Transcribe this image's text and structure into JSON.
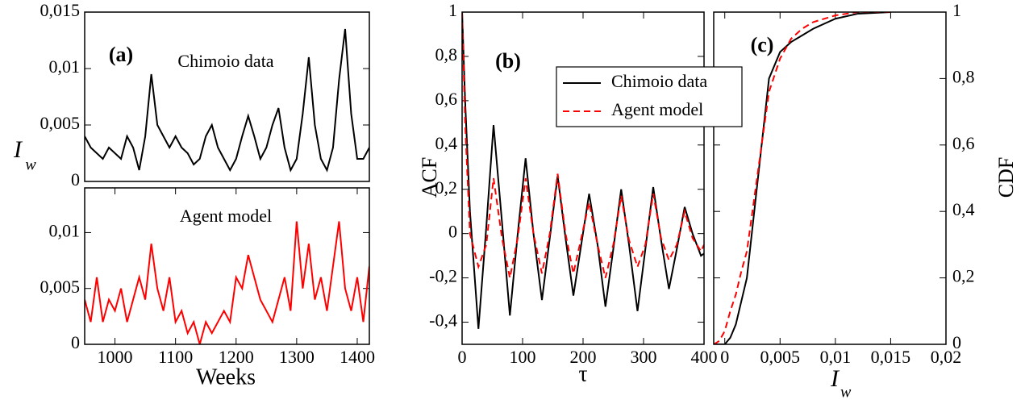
{
  "chart_data": [
    {
      "type": "line",
      "panel_label": "(a)",
      "annotation": "Chimoio data",
      "ylabel": "I",
      "ylabel_sub": "w",
      "x": [
        950,
        960,
        970,
        980,
        990,
        1000,
        1010,
        1020,
        1030,
        1040,
        1050,
        1060,
        1070,
        1080,
        1090,
        1100,
        1110,
        1120,
        1130,
        1140,
        1150,
        1160,
        1170,
        1180,
        1190,
        1200,
        1210,
        1220,
        1230,
        1240,
        1250,
        1260,
        1270,
        1280,
        1290,
        1300,
        1310,
        1320,
        1330,
        1340,
        1350,
        1360,
        1370,
        1380,
        1390,
        1400,
        1410,
        1420
      ],
      "series": [
        {
          "color": "#000000",
          "values": [
            0.004,
            0.003,
            0.0025,
            0.002,
            0.003,
            0.0025,
            0.002,
            0.004,
            0.003,
            0.001,
            0.004,
            0.0095,
            0.005,
            0.004,
            0.003,
            0.004,
            0.003,
            0.0025,
            0.0015,
            0.002,
            0.004,
            0.005,
            0.003,
            0.002,
            0.001,
            0.002,
            0.004,
            0.0058,
            0.004,
            0.002,
            0.003,
            0.005,
            0.0065,
            0.003,
            0.001,
            0.002,
            0.006,
            0.011,
            0.005,
            0.002,
            0.001,
            0.003,
            0.009,
            0.0135,
            0.006,
            0.002,
            0.002,
            0.003
          ]
        }
      ],
      "xlim": [
        950,
        1420
      ],
      "ylim": [
        0,
        0.015
      ],
      "yticks": [
        0,
        {
          "value": 0.005,
          "label": "0,005"
        },
        {
          "value": 0.01,
          "label": "0,01"
        },
        {
          "value": 0.015,
          "label": "0,015"
        }
      ]
    },
    {
      "type": "line",
      "annotation": "Agent model",
      "xlabel": "Weeks",
      "x": [
        950,
        960,
        970,
        980,
        990,
        1000,
        1010,
        1020,
        1030,
        1040,
        1050,
        1060,
        1070,
        1080,
        1090,
        1100,
        1110,
        1120,
        1130,
        1140,
        1150,
        1160,
        1170,
        1180,
        1190,
        1200,
        1210,
        1220,
        1230,
        1240,
        1250,
        1260,
        1270,
        1280,
        1290,
        1300,
        1310,
        1320,
        1330,
        1340,
        1350,
        1360,
        1370,
        1380,
        1390,
        1400,
        1410,
        1420
      ],
      "series": [
        {
          "color": "#ff0000",
          "values": [
            0.004,
            0.002,
            0.006,
            0.002,
            0.004,
            0.003,
            0.005,
            0.002,
            0.004,
            0.006,
            0.004,
            0.009,
            0.005,
            0.003,
            0.006,
            0.002,
            0.003,
            0.001,
            0.002,
            0,
            0.002,
            0.001,
            0.002,
            0.003,
            0.002,
            0.006,
            0.005,
            0.008,
            0.006,
            0.004,
            0.003,
            0.002,
            0.004,
            0.006,
            0.003,
            0.011,
            0.005,
            0.009,
            0.004,
            0.006,
            0.003,
            0.007,
            0.011,
            0.005,
            0.003,
            0.006,
            0.002,
            0.007
          ]
        }
      ],
      "xlim": [
        950,
        1420
      ],
      "ylim": [
        0,
        0.014
      ],
      "xticks": [
        1000,
        1100,
        1200,
        1300,
        1400
      ],
      "yticks": [
        0,
        {
          "value": 0.005,
          "label": "0,005"
        },
        {
          "value": 0.01,
          "label": "0,01"
        }
      ]
    },
    {
      "type": "line",
      "panel_label": "(b)",
      "ylabel": "ACF",
      "xlabel": "τ",
      "x": [
        0,
        5,
        13,
        27,
        40,
        52,
        66,
        79,
        92,
        105,
        118,
        132,
        145,
        158,
        171,
        184,
        197,
        210,
        224,
        237,
        250,
        263,
        276,
        290,
        303,
        316,
        329,
        342,
        355,
        368,
        381,
        395,
        400
      ],
      "series": [
        {
          "name": "Chimoio data",
          "color": "#000000",
          "dash": false,
          "values": [
            1,
            0.6,
            0.1,
            -0.43,
            0.03,
            0.49,
            0.05,
            -0.37,
            0,
            0.34,
            0,
            -0.3,
            -0.02,
            0.26,
            -0.02,
            -0.28,
            -0.05,
            0.18,
            -0.05,
            -0.33,
            -0.07,
            0.2,
            -0.05,
            -0.35,
            -0.07,
            0.21,
            -0.03,
            -0.25,
            -0.07,
            0.12,
            0,
            -0.1,
            -0.09
          ]
        },
        {
          "name": "Agent model",
          "color": "#ff0000",
          "dash": true,
          "values": [
            1,
            0.5,
            0,
            -0.15,
            -0.05,
            0.25,
            -0.02,
            -0.2,
            -0.02,
            0.25,
            0,
            -0.18,
            0,
            0.27,
            0,
            -0.18,
            -0.02,
            0.14,
            -0.05,
            -0.2,
            -0.05,
            0.17,
            -0.03,
            -0.15,
            -0.05,
            0.18,
            -0.02,
            -0.12,
            -0.05,
            0.1,
            -0.02,
            -0.08,
            -0.05
          ]
        }
      ],
      "xlim": [
        0,
        400
      ],
      "ylim": [
        -0.5,
        1
      ],
      "xticks": [
        0,
        100,
        200,
        300,
        400
      ],
      "yticks": [
        {
          "value": -0.4,
          "label": "-0,4"
        },
        {
          "value": -0.2,
          "label": "-0,2"
        },
        0,
        {
          "value": 0.2,
          "label": "0,2"
        },
        {
          "value": 0.4,
          "label": "0,4"
        },
        {
          "value": 0.6,
          "label": "0,6"
        },
        {
          "value": 0.8,
          "label": "0,8"
        },
        1
      ]
    },
    {
      "type": "line",
      "panel_label": "(c)",
      "ylabel": "CDF",
      "yaxis": "right",
      "xlabel": "I",
      "xlabel_sub": "w",
      "x": [
        -0.001,
        -0.0005,
        0,
        0.0005,
        0.001,
        0.0015,
        0.002,
        0.003,
        0.004,
        0.005,
        0.006,
        0.007,
        0.008,
        0.01,
        0.012,
        0.015
      ],
      "series": [
        {
          "color": "#000000",
          "dash": false,
          "values": [
            0,
            0,
            0,
            0.02,
            0.06,
            0.13,
            0.2,
            0.5,
            0.8,
            0.88,
            0.91,
            0.93,
            0.95,
            0.98,
            0.995,
            1
          ]
        },
        {
          "color": "#ff0000",
          "dash": true,
          "values": [
            0,
            0.01,
            0.04,
            0.1,
            0.15,
            0.22,
            0.28,
            0.52,
            0.76,
            0.86,
            0.92,
            0.95,
            0.97,
            0.99,
            1,
            1
          ]
        }
      ],
      "xlim": [
        -0.001,
        0.02
      ],
      "ylim": [
        0,
        1
      ],
      "xticks": [
        0,
        {
          "value": 0.005,
          "label": "0,005"
        },
        {
          "value": 0.01,
          "label": "0,01"
        },
        {
          "value": 0.015,
          "label": "0,015"
        },
        {
          "value": 0.02,
          "label": "0,02"
        }
      ],
      "yticks": [
        0,
        {
          "value": 0.2,
          "label": "0,2"
        },
        {
          "value": 0.4,
          "label": "0,4"
        },
        {
          "value": 0.6,
          "label": "0,6"
        },
        {
          "value": 0.8,
          "label": "0,8"
        },
        1
      ]
    }
  ]
}
